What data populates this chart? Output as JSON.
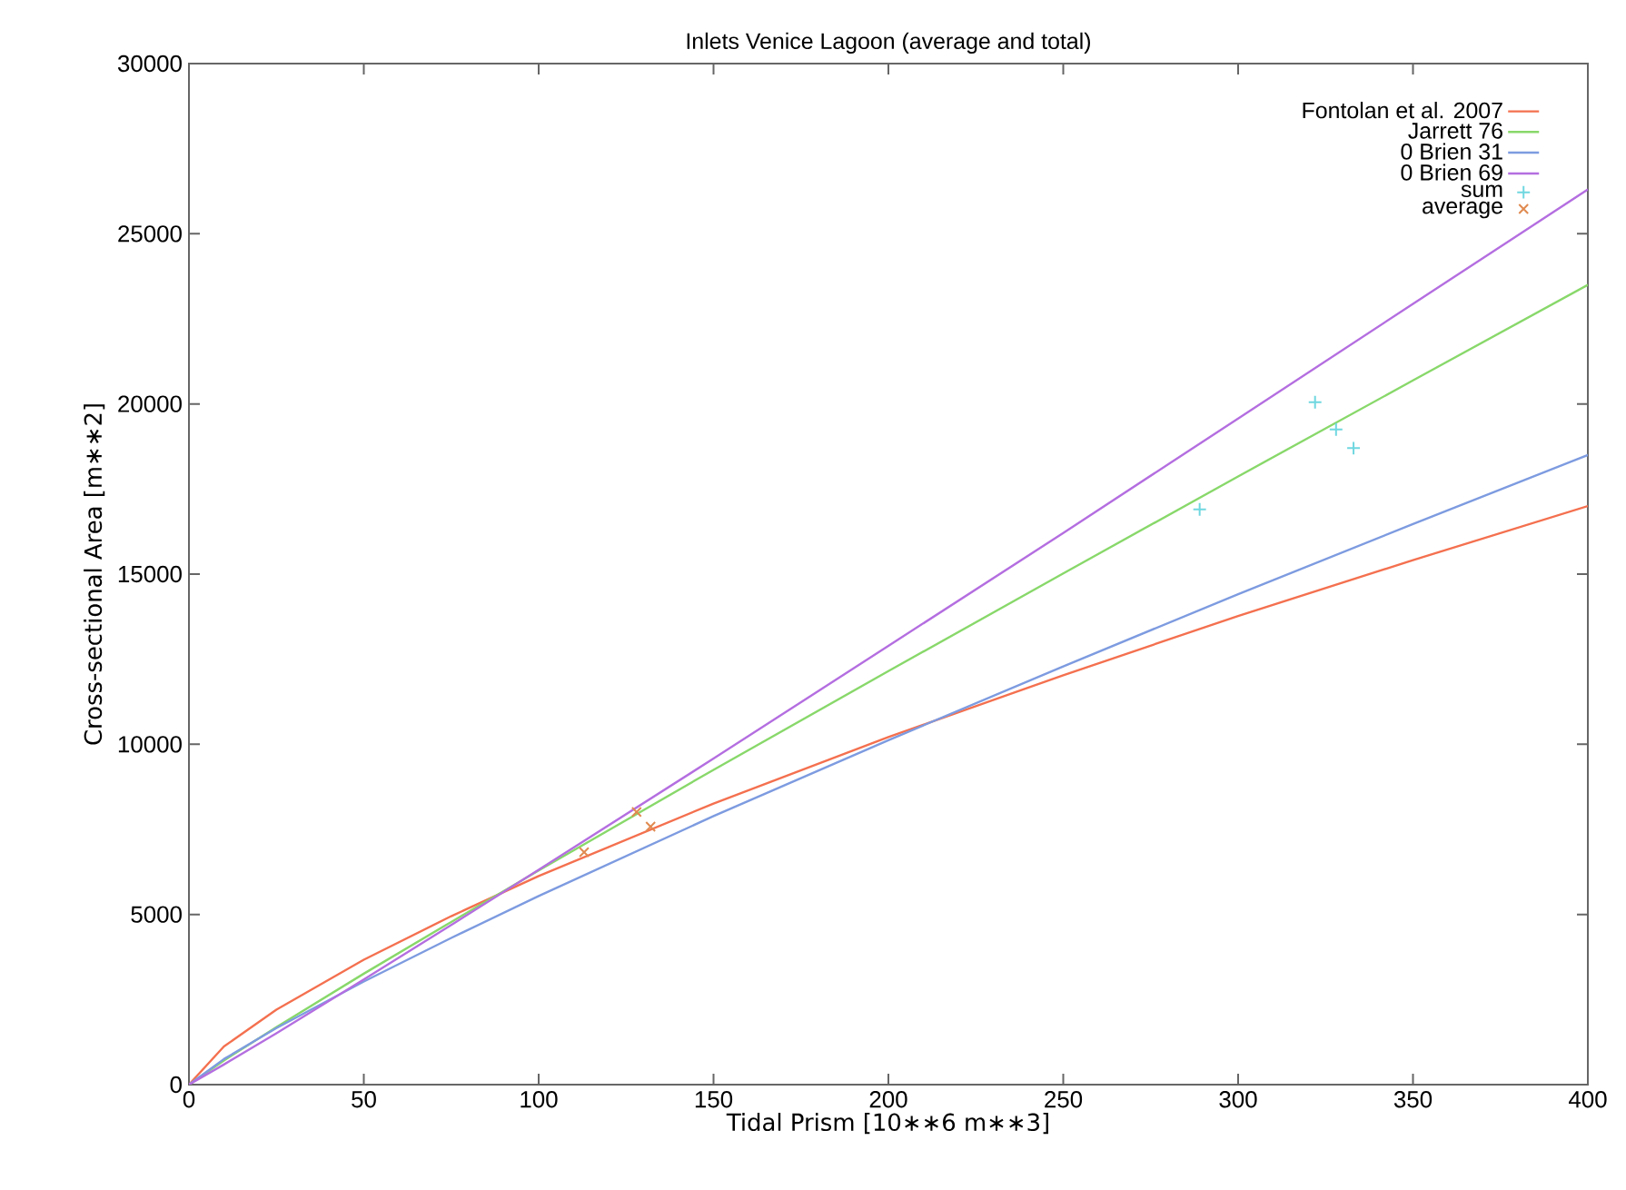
{
  "chart_data": {
    "type": "line",
    "title": "Inlets Venice Lagoon (average and total)",
    "xlabel": "Tidal Prism [10∗∗6  m∗∗3]",
    "ylabel": "Cross-sectional Area [m∗∗2]",
    "xlim": [
      0,
      400
    ],
    "ylim": [
      0,
      30000
    ],
    "xticks": [
      0,
      50,
      100,
      150,
      200,
      250,
      300,
      350,
      400
    ],
    "yticks": [
      0,
      5000,
      10000,
      15000,
      20000,
      25000,
      30000
    ],
    "grid": false,
    "legend": "top right",
    "series": [
      {
        "name": "Fontolan et al. 2007",
        "color": "#f4704f",
        "x": [
          0,
          10,
          25,
          50,
          75,
          100,
          150,
          200,
          250,
          300,
          350,
          400
        ],
        "values": [
          0,
          1120,
          2200,
          3670,
          4950,
          6130,
          8260,
          10210,
          12030,
          13770,
          15410,
          17000
        ]
      },
      {
        "name": "Jarrett 76",
        "color": "#88d86a",
        "x": [
          0,
          10,
          25,
          50,
          75,
          100,
          150,
          200,
          250,
          300,
          350,
          400
        ],
        "values": [
          0,
          710,
          1690,
          3260,
          4780,
          6290,
          9250,
          12150,
          15020,
          17870,
          20690,
          23500
        ]
      },
      {
        "name": "0 Brien 31",
        "color": "#7d9be0",
        "x": [
          0,
          10,
          25,
          50,
          75,
          100,
          150,
          200,
          250,
          300,
          350,
          400
        ],
        "values": [
          0,
          750,
          1660,
          3030,
          4310,
          5540,
          7890,
          10120,
          12290,
          14410,
          16470,
          18500
        ]
      },
      {
        "name": "0 Brien 69",
        "color": "#b46ee0",
        "x": [
          0,
          10,
          25,
          50,
          75,
          100,
          150,
          200,
          250,
          300,
          350,
          400
        ],
        "values": [
          0,
          590,
          1510,
          3090,
          4690,
          6310,
          9580,
          12890,
          16210,
          19570,
          22940,
          26300
        ]
      },
      {
        "name": "sum",
        "type": "scatter",
        "marker": "plus",
        "color": "#6fd7e0",
        "x": [
          289,
          322,
          328,
          333
        ],
        "values": [
          16900,
          20050,
          19250,
          18700
        ]
      },
      {
        "name": "average",
        "type": "scatter",
        "marker": "cross",
        "color": "#e08a50",
        "x": [
          113,
          128,
          132
        ],
        "values": [
          6830,
          8010,
          7580
        ]
      }
    ]
  }
}
